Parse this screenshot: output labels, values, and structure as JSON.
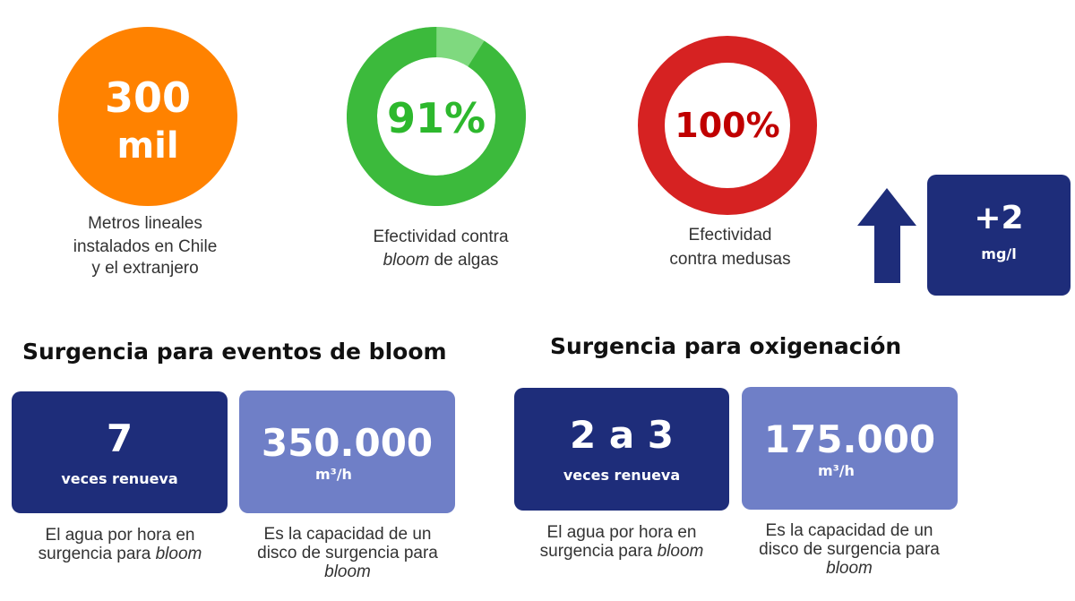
{
  "stats": [
    {
      "value_line1": "300",
      "value_line2": "mil",
      "caption": [
        "Metros lineales",
        "instalados en Chile",
        "y el extranjero"
      ],
      "color": "#ff8200"
    },
    {
      "value": "91%",
      "percent": 91,
      "caption_line1": "Efectividad contra",
      "caption_em": "bloom",
      "caption_rest": " de algas",
      "color": "#3cba3c",
      "remainder_color": "#7fd97f",
      "text_color": "#2db82d"
    },
    {
      "value": "100%",
      "percent": 100,
      "caption": [
        "Efectividad",
        "contra medusas"
      ],
      "color": "#d62222",
      "text_color": "#c00000"
    }
  ],
  "oxygen": {
    "value": "+2",
    "unit": "mg/l",
    "arrow": "arrow-up-icon"
  },
  "sections": [
    {
      "title": "Surgencia para eventos de bloom",
      "cards": [
        {
          "value": "7",
          "unit": "veces renueva",
          "caption": "El agua por hora en",
          "caption2": "surgencia para ",
          "caption_em": "bloom"
        },
        {
          "value": "350.000",
          "unit": "m³/h",
          "caption": "Es la capacidad de un",
          "caption2": "disco de surgencia para",
          "caption_em": "bloom"
        }
      ]
    },
    {
      "title": "Surgencia para oxigenación",
      "cards": [
        {
          "value": "2 a 3",
          "unit": "veces renueva",
          "caption": "El agua por hora en",
          "caption2": "surgencia para ",
          "caption_em": "bloom"
        },
        {
          "value": "175.000",
          "unit": "m³/h",
          "caption": "Es la capacidad de un",
          "caption2": "disco de surgencia para",
          "caption_em": "bloom"
        }
      ]
    }
  ]
}
